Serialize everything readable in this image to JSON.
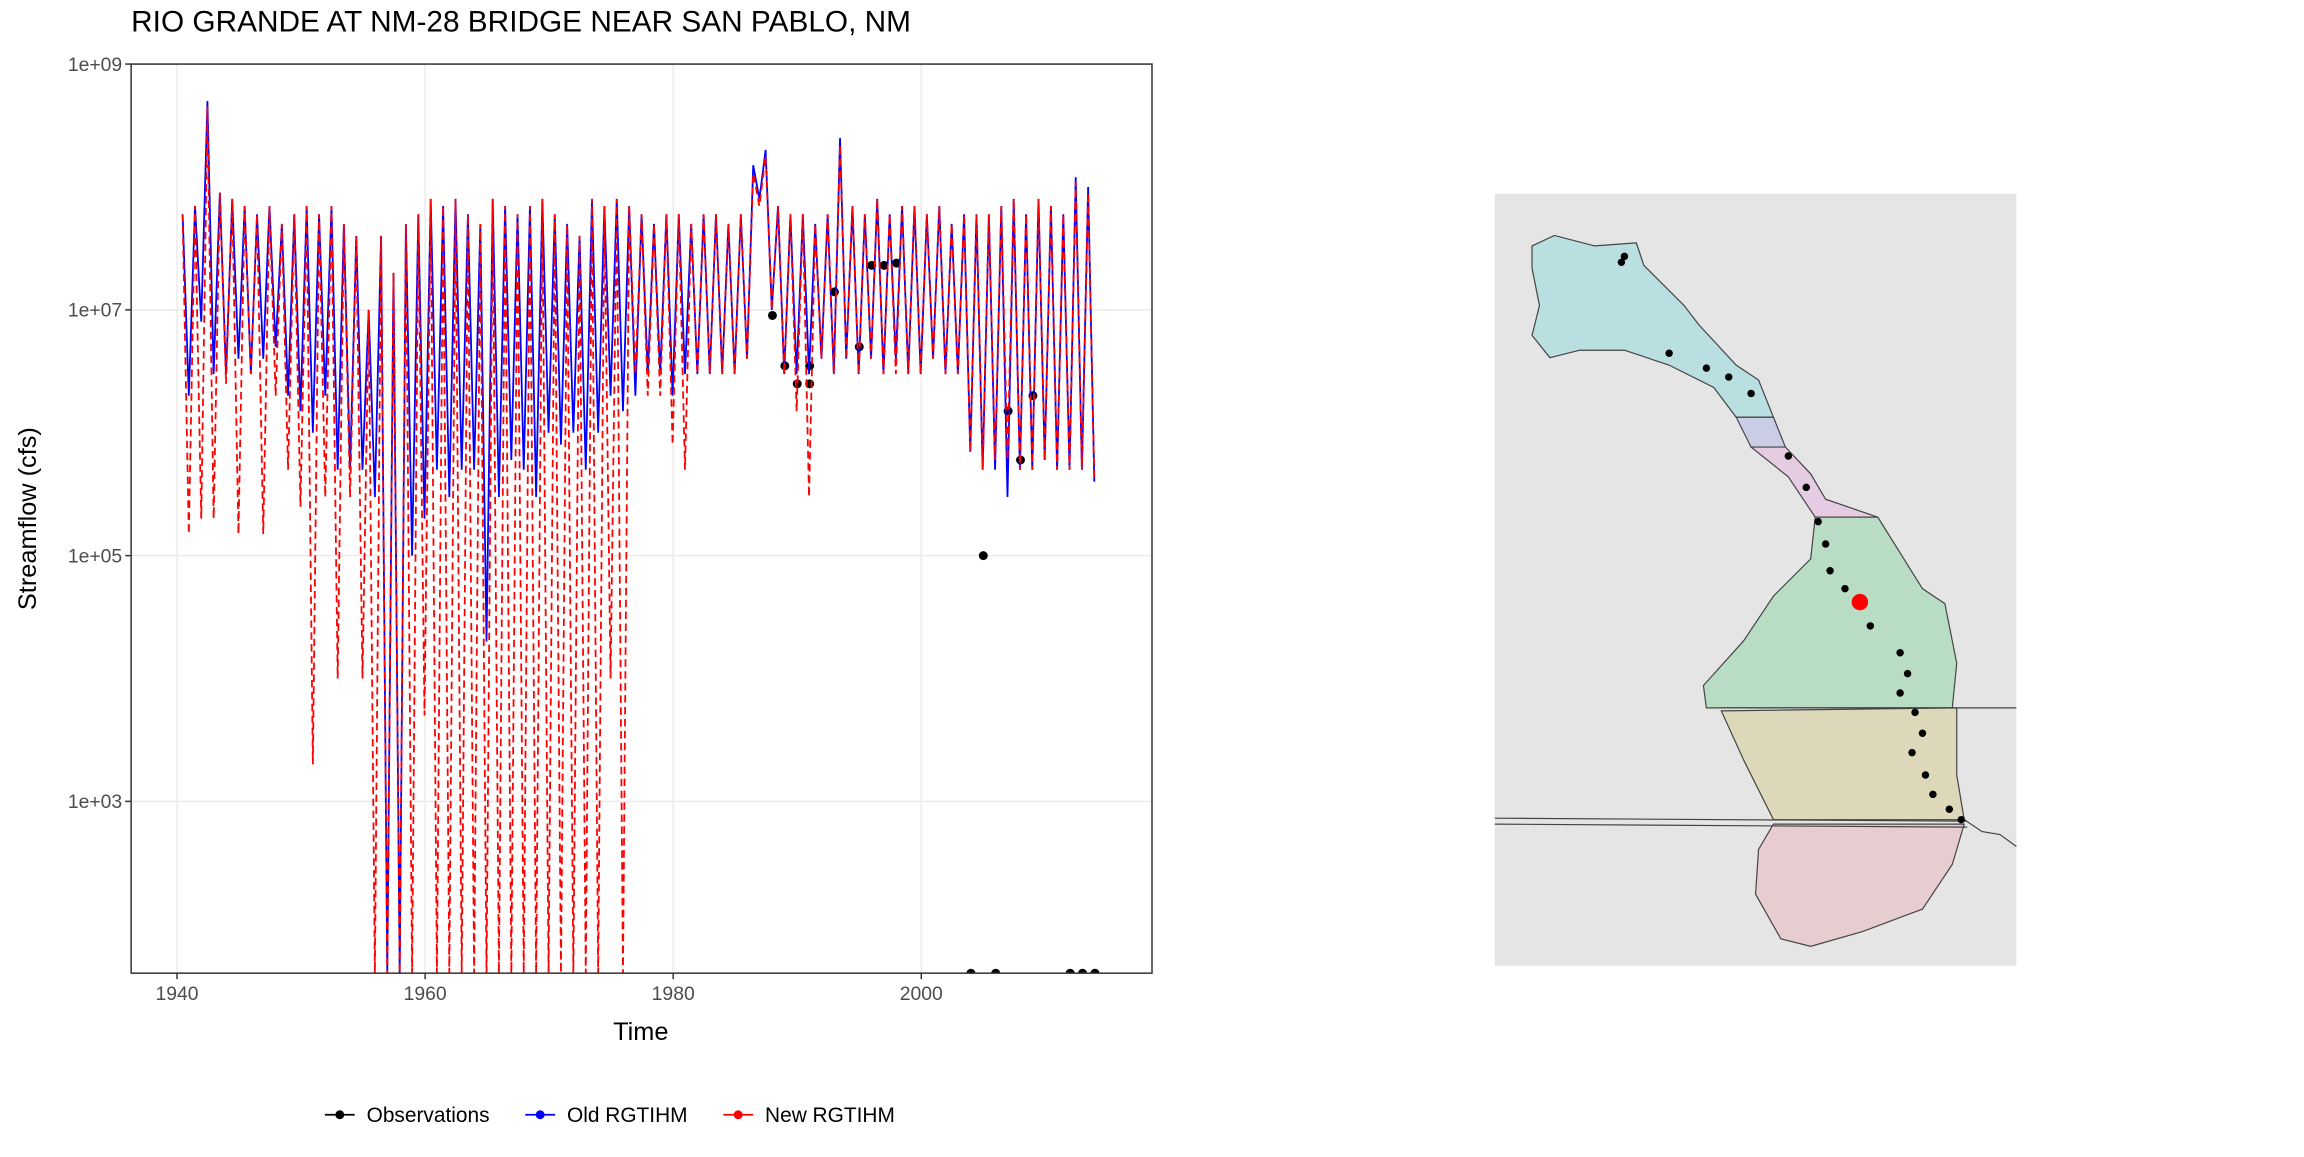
{
  "chart_data": {
    "type": "line",
    "title": "RIO GRANDE AT NM-28 BRIDGE NEAR SAN PABLO, NM",
    "x_label": "Time",
    "y_label": "Streamflow (cfs)",
    "log_y": true,
    "grid": true,
    "legend_position": "bottom",
    "xlim": [
      1936.3,
      2018.6
    ],
    "xticks": [
      1940,
      1960,
      1980,
      2000
    ],
    "ylim": [
      40,
      1000000000
    ],
    "yticks": [
      {
        "value": 1000,
        "label": "1e+03"
      },
      {
        "value": 100000,
        "label": "1e+05"
      },
      {
        "value": 10000000,
        "label": "1e+07"
      },
      {
        "value": 1000000000,
        "label": "1e+09"
      }
    ],
    "x": [
      1940.45,
      1940.95,
      1941.45,
      1941.95,
      1942.45,
      1942.95,
      1943.45,
      1943.95,
      1944.45,
      1944.95,
      1945.45,
      1945.95,
      1946.45,
      1946.95,
      1947.45,
      1947.95,
      1948.45,
      1948.95,
      1949.45,
      1949.95,
      1950.45,
      1950.95,
      1951.45,
      1951.95,
      1952.45,
      1952.95,
      1953.45,
      1953.95,
      1954.45,
      1954.95,
      1955.45,
      1955.95,
      1956.45,
      1956.95,
      1957.45,
      1957.95,
      1958.45,
      1958.95,
      1959.45,
      1959.95,
      1960.45,
      1960.95,
      1961.45,
      1961.95,
      1962.45,
      1962.95,
      1963.45,
      1963.95,
      1964.45,
      1964.95,
      1965.45,
      1965.95,
      1966.45,
      1966.95,
      1967.45,
      1967.95,
      1968.45,
      1968.95,
      1969.45,
      1969.95,
      1970.45,
      1970.95,
      1971.45,
      1971.95,
      1972.45,
      1972.95,
      1973.45,
      1973.95,
      1974.45,
      1974.95,
      1975.45,
      1975.95,
      1976.45,
      1976.95,
      1977.45,
      1977.95,
      1978.45,
      1978.95,
      1979.45,
      1979.95,
      1980.45,
      1980.95,
      1981.45,
      1981.95,
      1982.45,
      1982.95,
      1983.45,
      1983.95,
      1984.45,
      1984.95,
      1985.45,
      1985.95,
      1986.45,
      1986.95,
      1987.45,
      1987.95,
      1988.45,
      1988.95,
      1989.45,
      1989.95,
      1990.45,
      1990.95,
      1991.45,
      1991.95,
      1992.45,
      1992.95,
      1993.45,
      1993.95,
      1994.45,
      1994.95,
      1995.45,
      1995.95,
      1996.45,
      1996.95,
      1997.45,
      1997.95,
      1998.45,
      1998.95,
      1999.45,
      1999.95,
      2000.45,
      2000.95,
      2001.45,
      2001.95,
      2002.45,
      2002.95,
      2003.45,
      2003.95,
      2004.45,
      2004.95,
      2005.45,
      2005.95,
      2006.45,
      2006.95,
      2007.45,
      2007.95,
      2008.45,
      2008.95,
      2009.45,
      2009.95,
      2010.45,
      2010.95,
      2011.45,
      2011.95,
      2012.45,
      2012.95,
      2013.45,
      2013.95
    ],
    "series": [
      {
        "name": "Observations",
        "color": "#000000",
        "style": "points",
        "x": [
          1988,
          1989,
          1990,
          1991,
          1991,
          1993,
          1995,
          1996,
          1997,
          1998,
          2004,
          2005,
          2006,
          2007,
          2008,
          2009,
          2012,
          2013,
          2014
        ],
        "values": [
          9000000.0,
          3500000.0,
          2500000.0,
          3500000.0,
          2500000.0,
          14000000.0,
          5000000.0,
          23000000.0,
          23000000.0,
          24000000.0,
          40,
          100000.0,
          40,
          1500000.0,
          600000.0,
          2000000.0,
          40,
          40,
          40
        ]
      },
      {
        "name": "Old RGTIHM",
        "color": "#0000ff",
        "style": "solid",
        "values": [
          60000000.0,
          2000000.0,
          70000000.0,
          8000000.0,
          500000000.0,
          3000000.0,
          90000000.0,
          3000000.0,
          80000000.0,
          4000000.0,
          70000000.0,
          3000000.0,
          60000000.0,
          4000000.0,
          70000000.0,
          5000000.0,
          50000000.0,
          2000000.0,
          60000000.0,
          1500000.0,
          70000000.0,
          1000000.0,
          60000000.0,
          2000000.0,
          70000000.0,
          500000.0,
          50000000.0,
          500000.0,
          40000000.0,
          500000.0,
          10000000.0,
          300000.0,
          40000000.0,
          40,
          20000000.0,
          40,
          50000000.0,
          100000.0,
          60000000.0,
          200000.0,
          80000000.0,
          500000.0,
          70000000.0,
          300000.0,
          80000000.0,
          500000.0,
          60000000.0,
          500000.0,
          50000000.0,
          20000.0,
          80000000.0,
          300000.0,
          70000000.0,
          600000.0,
          60000000.0,
          500000.0,
          70000000.0,
          300000.0,
          80000000.0,
          1000000.0,
          60000000.0,
          800000.0,
          50000000.0,
          1000000.0,
          40000000.0,
          500000.0,
          80000000.0,
          1000000.0,
          70000000.0,
          2000000.0,
          80000000.0,
          1500000.0,
          70000000.0,
          2000000.0,
          60000000.0,
          3000000.0,
          50000000.0,
          3000000.0,
          60000000.0,
          2000000.0,
          60000000.0,
          3000000.0,
          50000000.0,
          3000000.0,
          60000000.0,
          3000000.0,
          60000000.0,
          3000000.0,
          50000000.0,
          3000000.0,
          60000000.0,
          4000000.0,
          150000000.0,
          80000000.0,
          200000000.0,
          10000000.0,
          70000000.0,
          3000000.0,
          60000000.0,
          3000000.0,
          60000000.0,
          3000000.0,
          50000000.0,
          4000000.0,
          60000000.0,
          3000000.0,
          250000000.0,
          4000000.0,
          70000000.0,
          3000000.0,
          60000000.0,
          4000000.0,
          80000000.0,
          3000000.0,
          60000000.0,
          4000000.0,
          70000000.0,
          3000000.0,
          70000000.0,
          3000000.0,
          60000000.0,
          4000000.0,
          70000000.0,
          3000000.0,
          50000000.0,
          3000000.0,
          60000000.0,
          700000.0,
          60000000.0,
          500000.0,
          60000000.0,
          500000.0,
          70000000.0,
          300000.0,
          80000000.0,
          500000.0,
          60000000.0,
          500000.0,
          80000000.0,
          600000.0,
          70000000.0,
          500000.0,
          60000000.0,
          500000.0,
          120000000.0,
          500000.0,
          100000000.0,
          400000.0
        ]
      },
      {
        "name": "New RGTIHM",
        "color": "#ff0000",
        "style": "dashed",
        "values": [
          60000000.0,
          150000.0,
          70000000.0,
          200000.0,
          450000000.0,
          200000.0,
          90000000.0,
          2500000.0,
          80000000.0,
          150000.0,
          70000000.0,
          3000000.0,
          60000000.0,
          150000.0,
          70000000.0,
          2000000.0,
          50000000.0,
          500000.0,
          60000000.0,
          250000.0,
          70000000.0,
          2000.0,
          60000000.0,
          300000.0,
          70000000.0,
          10000.0,
          50000000.0,
          300000.0,
          40000000.0,
          10000.0,
          10000000.0,
          40,
          40000000.0,
          40,
          20000000.0,
          40,
          50000000.0,
          40,
          60000000.0,
          5000.0,
          80000000.0,
          40,
          70000000.0,
          40,
          80000000.0,
          40,
          60000000.0,
          40,
          50000000.0,
          40,
          80000000.0,
          40,
          70000000.0,
          40,
          60000000.0,
          40,
          70000000.0,
          40,
          80000000.0,
          40,
          60000000.0,
          40,
          50000000.0,
          40,
          40000000.0,
          40,
          80000000.0,
          40,
          70000000.0,
          10000.0,
          80000000.0,
          40,
          70000000.0,
          3000000.0,
          60000000.0,
          2000000.0,
          50000000.0,
          2000000.0,
          60000000.0,
          800000.0,
          60000000.0,
          500000.0,
          50000000.0,
          3000000.0,
          60000000.0,
          3000000.0,
          60000000.0,
          3000000.0,
          50000000.0,
          3000000.0,
          60000000.0,
          4000000.0,
          130000000.0,
          70000000.0,
          180000000.0,
          10000000.0,
          70000000.0,
          3000000.0,
          60000000.0,
          1500000.0,
          60000000.0,
          300000.0,
          50000000.0,
          4000000.0,
          60000000.0,
          3000000.0,
          220000000.0,
          4000000.0,
          70000000.0,
          3000000.0,
          60000000.0,
          4000000.0,
          80000000.0,
          3000000.0,
          60000000.0,
          3000000.0,
          70000000.0,
          3000000.0,
          70000000.0,
          3000000.0,
          60000000.0,
          4000000.0,
          70000000.0,
          3000000.0,
          50000000.0,
          3000000.0,
          60000000.0,
          700000.0,
          60000000.0,
          500000.0,
          60000000.0,
          600000.0,
          70000000.0,
          600000.0,
          80000000.0,
          500000.0,
          60000000.0,
          500000.0,
          80000000.0,
          600000.0,
          70000000.0,
          500000.0,
          60000000.0,
          500000.0,
          110000000.0,
          500000.0,
          90000000.0,
          400000.0
        ]
      }
    ]
  }
}
